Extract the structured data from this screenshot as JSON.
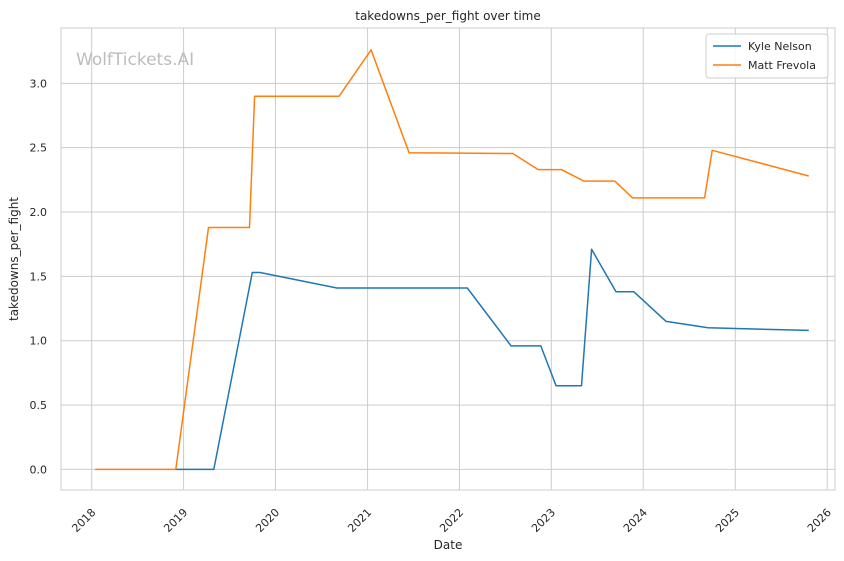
{
  "chart_data": {
    "type": "line",
    "title": "takedowns_per_fight over time",
    "xlabel": "Date",
    "ylabel": "takedowns_per_fight",
    "watermark": "WolfTickets.AI",
    "xlim": [
      "2017-09-01",
      "2026-02-01"
    ],
    "ylim": [
      -0.16,
      3.43
    ],
    "x_ticks": [
      "2018",
      "2019",
      "2020",
      "2021",
      "2022",
      "2023",
      "2024",
      "2025",
      "2026"
    ],
    "y_ticks": [
      "0.0",
      "0.5",
      "1.0",
      "1.5",
      "2.0",
      "2.5",
      "3.0"
    ],
    "grid": true,
    "legend_position": "top-right",
    "series": [
      {
        "name": "Kyle Nelson",
        "color": "#1f77b4",
        "points": [
          [
            "2018-12-01",
            0.0
          ],
          [
            "2019-05-01",
            0.0
          ],
          [
            "2019-10-01",
            1.53
          ],
          [
            "2019-11-01",
            1.53
          ],
          [
            "2020-09-01",
            1.41
          ],
          [
            "2022-02-01",
            1.41
          ],
          [
            "2022-07-25",
            0.96
          ],
          [
            "2022-11-20",
            0.96
          ],
          [
            "2023-01-20",
            0.65
          ],
          [
            "2023-05-01",
            0.65
          ],
          [
            "2023-06-10",
            1.71
          ],
          [
            "2023-09-15",
            1.38
          ],
          [
            "2023-11-25",
            1.38
          ],
          [
            "2024-04-01",
            1.15
          ],
          [
            "2024-09-15",
            1.1
          ],
          [
            "2025-10-20",
            1.08
          ]
        ]
      },
      {
        "name": "Matt Frevola",
        "color": "#ff7f0e",
        "points": [
          [
            "2018-01-15",
            0.0
          ],
          [
            "2018-12-01",
            0.0
          ],
          [
            "2019-04-10",
            1.88
          ],
          [
            "2019-09-20",
            1.88
          ],
          [
            "2019-10-10",
            2.9
          ],
          [
            "2020-09-10",
            2.9
          ],
          [
            "2021-01-15",
            3.26
          ],
          [
            "2021-06-15",
            2.46
          ],
          [
            "2022-08-01",
            2.455
          ],
          [
            "2022-11-10",
            2.33
          ],
          [
            "2023-02-10",
            2.33
          ],
          [
            "2023-05-10",
            2.24
          ],
          [
            "2023-09-10",
            2.24
          ],
          [
            "2023-11-20",
            2.11
          ],
          [
            "2024-09-01",
            2.11
          ],
          [
            "2024-10-01",
            2.48
          ],
          [
            "2025-10-20",
            2.28
          ]
        ]
      }
    ]
  }
}
